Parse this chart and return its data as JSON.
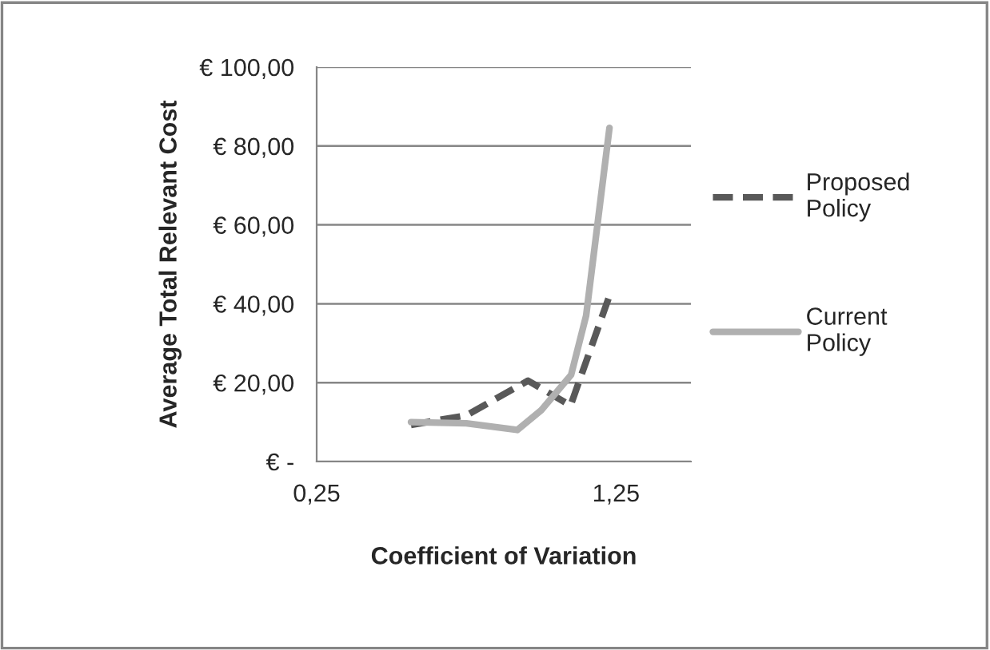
{
  "chart_data": {
    "type": "line",
    "xlabel": "Coefficient of Variation",
    "ylabel": "Average Total Relevant Cost",
    "xlim": [
      0.25,
      1.5
    ],
    "xticks": [
      {
        "value": 0.25,
        "label": "0,25"
      },
      {
        "value": 1.25,
        "label": "1,25"
      }
    ],
    "ylim": [
      0,
      100
    ],
    "yticks": [
      {
        "value": 0,
        "label": "€ -"
      },
      {
        "value": 20,
        "label": "€ 20,00"
      },
      {
        "value": 40,
        "label": "€ 40,00"
      },
      {
        "value": 60,
        "label": "€ 60,00"
      },
      {
        "value": 80,
        "label": "€ 80,00"
      },
      {
        "value": 100,
        "label": "€ 100,00"
      }
    ],
    "grid": "y",
    "legend": "right",
    "series": [
      {
        "name": "Proposed\nPolicy",
        "color": "#595959",
        "line_style": "dashed",
        "x": [
          0.565,
          0.75,
          0.956,
          1.098,
          1.225
        ],
        "values": [
          9.3,
          11.7,
          20.5,
          14.2,
          41.4
        ]
      },
      {
        "name": "Current\nPolicy",
        "color": "#b0b0b0",
        "line_style": "solid",
        "x": [
          0.565,
          0.75,
          0.92,
          1.0,
          1.1,
          1.15,
          1.228
        ],
        "values": [
          10,
          9.7,
          8,
          13,
          22,
          37,
          84.6
        ]
      }
    ]
  }
}
